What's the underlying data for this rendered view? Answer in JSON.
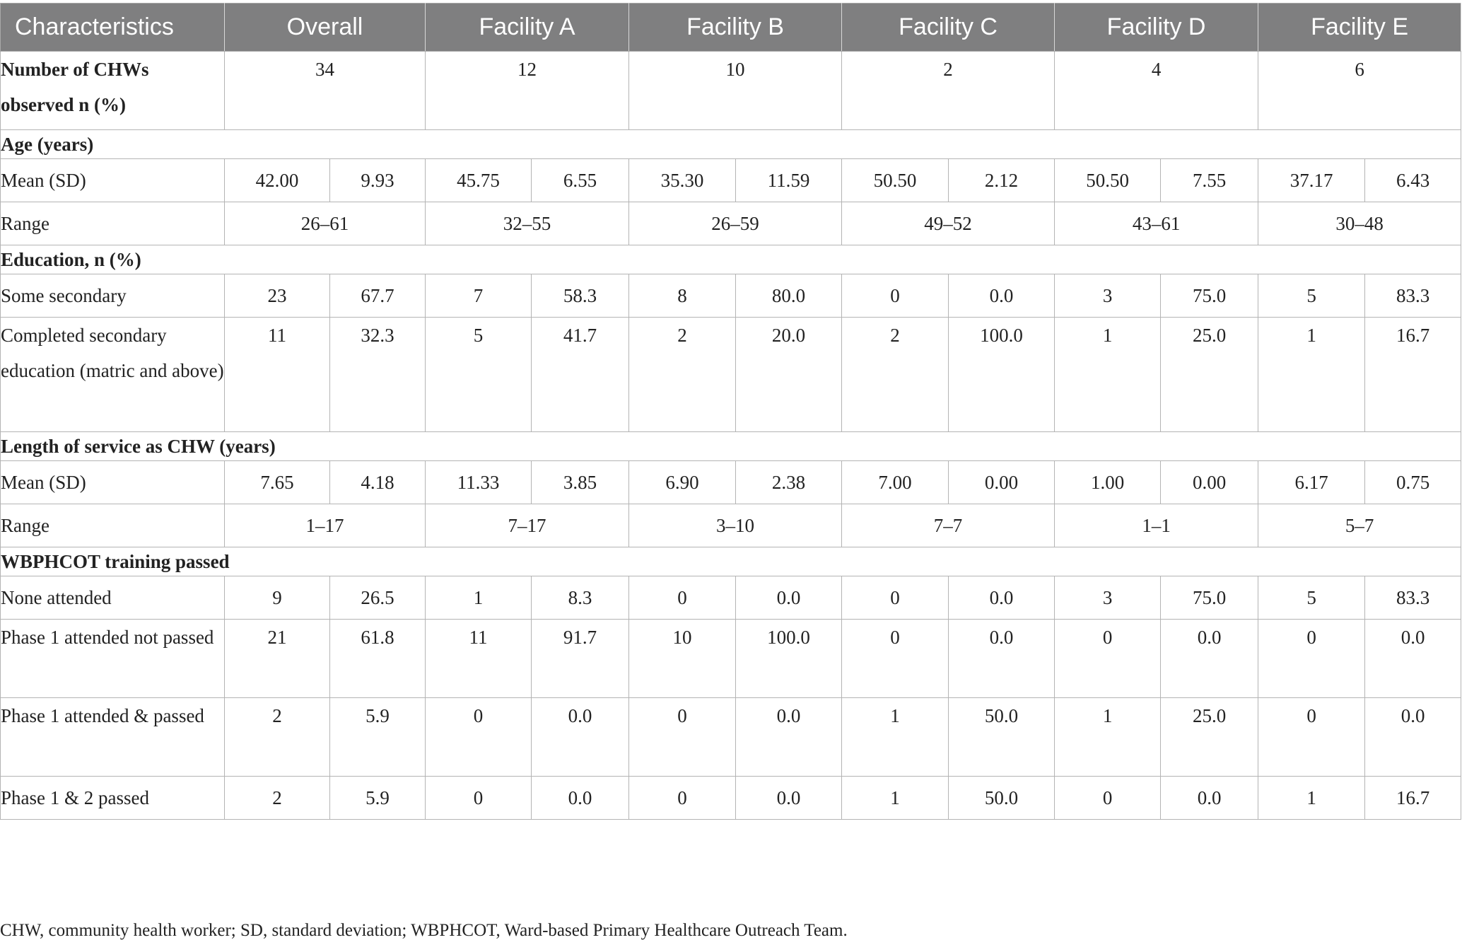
{
  "table": {
    "headers": [
      "Characteristics",
      "Overall",
      "Facility A",
      "Facility B",
      "Facility C",
      "Facility D",
      "Facility E"
    ],
    "n_row": {
      "label": "Number of CHWs observed n (%)",
      "values": [
        "34",
        "12",
        "10",
        "2",
        "4",
        "6"
      ]
    },
    "age": {
      "section": "Age (years)",
      "mean": {
        "label": "Mean (SD)",
        "values": [
          "42.00",
          "9.93",
          "45.75",
          "6.55",
          "35.30",
          "11.59",
          "50.50",
          "2.12",
          "50.50",
          "7.55",
          "37.17",
          "6.43"
        ]
      },
      "range": {
        "label": "Range",
        "values": [
          "26–61",
          "32–55",
          "26–59",
          "49–52",
          "43–61",
          "30–48"
        ]
      }
    },
    "education": {
      "section": "Education, n (%)",
      "some_secondary": {
        "label": "Some secondary",
        "values": [
          "23",
          "67.7",
          "7",
          "58.3",
          "8",
          "80.0",
          "0",
          "0.0",
          "3",
          "75.0",
          "5",
          "83.3"
        ]
      },
      "completed": {
        "label": "Completed secondary education (matric and above)",
        "values": [
          "11",
          "32.3",
          "5",
          "41.7",
          "2",
          "20.0",
          "2",
          "100.0",
          "1",
          "25.0",
          "1",
          "16.7"
        ]
      }
    },
    "service": {
      "section": "Length of service as CHW (years)",
      "mean": {
        "label": "Mean (SD)",
        "values": [
          "7.65",
          "4.18",
          "11.33",
          "3.85",
          "6.90",
          "2.38",
          "7.00",
          "0.00",
          "1.00",
          "0.00",
          "6.17",
          "0.75"
        ]
      },
      "range": {
        "label": "Range",
        "values": [
          "1–17",
          "7–17",
          "3–10",
          "7–7",
          "1–1",
          "5–7"
        ]
      }
    },
    "training": {
      "section": "WBPHCOT training passed",
      "none": {
        "label": "None attended",
        "values": [
          "9",
          "26.5",
          "1",
          "8.3",
          "0",
          "0.0",
          "0",
          "0.0",
          "3",
          "75.0",
          "5",
          "83.3"
        ]
      },
      "p1_not": {
        "label": "Phase 1 attended not passed",
        "values": [
          "21",
          "61.8",
          "11",
          "91.7",
          "10",
          "100.0",
          "0",
          "0.0",
          "0",
          "0.0",
          "0",
          "0.0"
        ]
      },
      "p1_pass": {
        "label": "Phase 1 attended & passed",
        "values": [
          "2",
          "5.9",
          "0",
          "0.0",
          "0",
          "0.0",
          "1",
          "50.0",
          "1",
          "25.0",
          "0",
          "0.0"
        ]
      },
      "p12": {
        "label": "Phase 1 & 2 passed",
        "values": [
          "2",
          "5.9",
          "0",
          "0.0",
          "0",
          "0.0",
          "1",
          "50.0",
          "0",
          "0.0",
          "1",
          "16.7"
        ]
      }
    }
  },
  "footnote": "CHW, community health worker; SD, standard deviation; WBPHCOT, Ward-based Primary Healthcare Outreach Team."
}
